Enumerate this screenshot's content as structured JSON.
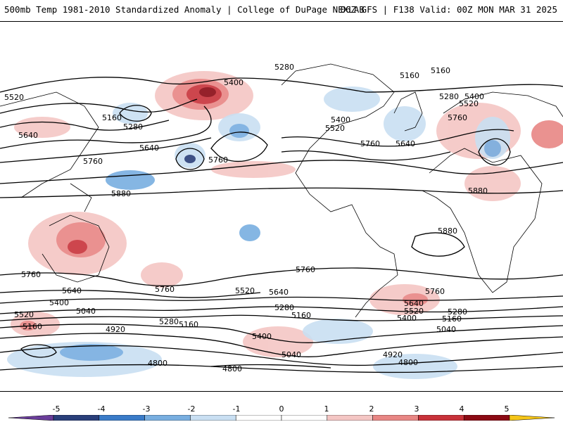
{
  "header": {
    "title_left": "500mb Temp 1981-2010 Standardized Anomaly | College of DuPage NEXLAB",
    "title_right": "06Z GFS | F138 Valid: 00Z MON MAR 31 2025"
  },
  "colorbar": {
    "ticks": [
      "-5",
      "-4",
      "-3",
      "-2",
      "-1",
      "0",
      "1",
      "2",
      "3",
      "4",
      "5"
    ],
    "colors": [
      "#6a3d9a",
      "#2a3f7a",
      "#3a7bc8",
      "#78aee0",
      "#c9dff2",
      "#ffffff",
      "#ffffff",
      "#f4c6c4",
      "#e88684",
      "#c8323a",
      "#8b0a14",
      "#f5c518"
    ]
  },
  "contour_labels": [
    {
      "text": "5520"
    },
    {
      "text": "5160"
    },
    {
      "text": "5280"
    },
    {
      "text": "5640"
    },
    {
      "text": "5760"
    },
    {
      "text": "5880"
    },
    {
      "text": "5400"
    },
    {
      "text": "5640"
    },
    {
      "text": "5760"
    },
    {
      "text": "5280"
    },
    {
      "text": "5400"
    },
    {
      "text": "5520"
    },
    {
      "text": "5760"
    },
    {
      "text": "5160"
    },
    {
      "text": "5160"
    },
    {
      "text": "5280"
    },
    {
      "text": "5400"
    },
    {
      "text": "5520"
    },
    {
      "text": "5640"
    },
    {
      "text": "5760"
    },
    {
      "text": "5880"
    },
    {
      "text": "5880"
    },
    {
      "text": "5760"
    },
    {
      "text": "5640"
    },
    {
      "text": "5760"
    },
    {
      "text": "5760"
    },
    {
      "text": "5520"
    },
    {
      "text": "5640"
    },
    {
      "text": "5760"
    },
    {
      "text": "5400"
    },
    {
      "text": "5040"
    },
    {
      "text": "5520"
    },
    {
      "text": "5160"
    },
    {
      "text": "4920"
    },
    {
      "text": "5280"
    },
    {
      "text": "5160"
    },
    {
      "text": "5280"
    },
    {
      "text": "5160"
    },
    {
      "text": "5400"
    },
    {
      "text": "5040"
    },
    {
      "text": "4800"
    },
    {
      "text": "4800"
    },
    {
      "text": "4920"
    },
    {
      "text": "4800"
    },
    {
      "text": "5640"
    },
    {
      "text": "5520"
    },
    {
      "text": "5400"
    },
    {
      "text": "5280"
    },
    {
      "text": "5160"
    },
    {
      "text": "5040"
    }
  ]
}
